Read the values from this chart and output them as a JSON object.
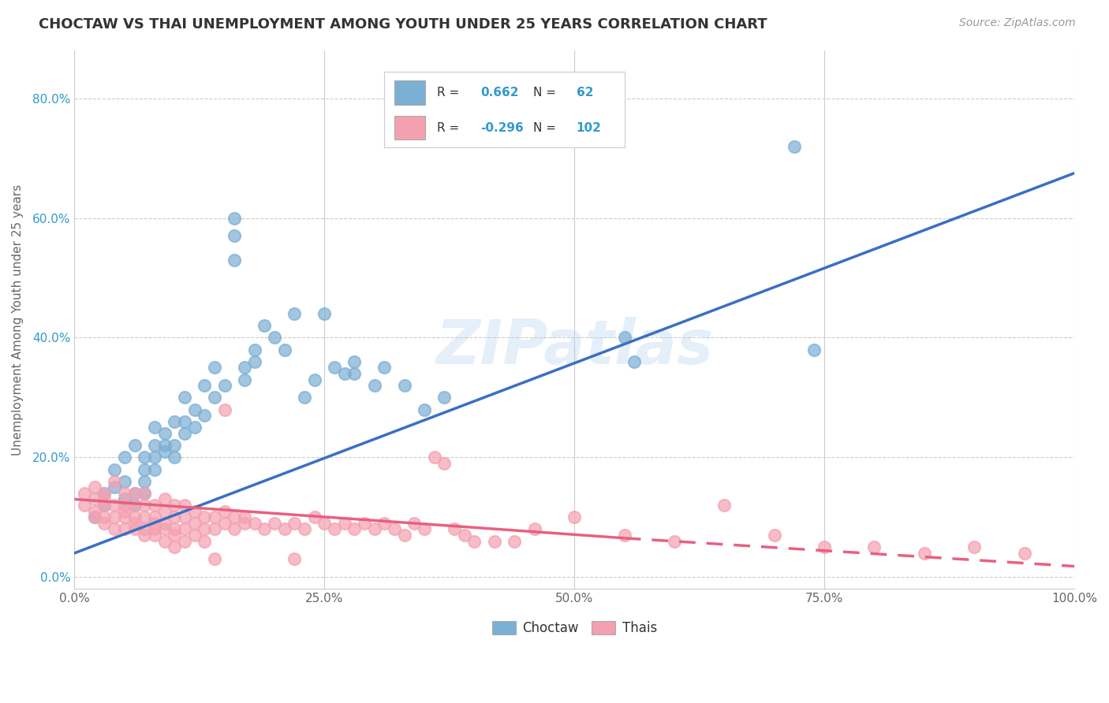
{
  "title": "CHOCTAW VS THAI UNEMPLOYMENT AMONG YOUTH UNDER 25 YEARS CORRELATION CHART",
  "source": "Source: ZipAtlas.com",
  "ylabel": "Unemployment Among Youth under 25 years",
  "xlim": [
    0.0,
    1.0
  ],
  "ylim": [
    -0.02,
    0.88
  ],
  "xticks": [
    0.0,
    0.25,
    0.5,
    0.75,
    1.0
  ],
  "xticklabels": [
    "0.0%",
    "25.0%",
    "50.0%",
    "75.0%",
    "100.0%"
  ],
  "ytick_positions": [
    0.0,
    0.2,
    0.4,
    0.6,
    0.8
  ],
  "yticklabels": [
    "0.0%",
    "20.0%",
    "40.0%",
    "60.0%",
    "80.0%"
  ],
  "choctaw_color": "#7BAFD4",
  "thai_color": "#F4A0B0",
  "choctaw_line_color": "#3A6FC4",
  "thai_line_color": "#E86080",
  "legend_R_choctaw": "0.662",
  "legend_N_choctaw": "62",
  "legend_R_thai": "-0.296",
  "legend_N_thai": "102",
  "watermark": "ZIPatlas",
  "background_color": "#FFFFFF",
  "grid_color": "#CCCCCC",
  "choctaw_scatter": [
    [
      0.02,
      0.1
    ],
    [
      0.03,
      0.14
    ],
    [
      0.03,
      0.12
    ],
    [
      0.04,
      0.15
    ],
    [
      0.04,
      0.18
    ],
    [
      0.05,
      0.13
    ],
    [
      0.05,
      0.2
    ],
    [
      0.05,
      0.16
    ],
    [
      0.06,
      0.12
    ],
    [
      0.06,
      0.22
    ],
    [
      0.06,
      0.14
    ],
    [
      0.07,
      0.18
    ],
    [
      0.07,
      0.2
    ],
    [
      0.07,
      0.16
    ],
    [
      0.07,
      0.14
    ],
    [
      0.08,
      0.2
    ],
    [
      0.08,
      0.22
    ],
    [
      0.08,
      0.25
    ],
    [
      0.08,
      0.18
    ],
    [
      0.09,
      0.22
    ],
    [
      0.09,
      0.24
    ],
    [
      0.09,
      0.21
    ],
    [
      0.1,
      0.26
    ],
    [
      0.1,
      0.22
    ],
    [
      0.1,
      0.2
    ],
    [
      0.11,
      0.3
    ],
    [
      0.11,
      0.26
    ],
    [
      0.11,
      0.24
    ],
    [
      0.12,
      0.28
    ],
    [
      0.12,
      0.25
    ],
    [
      0.13,
      0.32
    ],
    [
      0.13,
      0.27
    ],
    [
      0.14,
      0.35
    ],
    [
      0.14,
      0.3
    ],
    [
      0.15,
      0.32
    ],
    [
      0.16,
      0.6
    ],
    [
      0.16,
      0.57
    ],
    [
      0.16,
      0.53
    ],
    [
      0.17,
      0.35
    ],
    [
      0.17,
      0.33
    ],
    [
      0.18,
      0.38
    ],
    [
      0.18,
      0.36
    ],
    [
      0.19,
      0.42
    ],
    [
      0.2,
      0.4
    ],
    [
      0.21,
      0.38
    ],
    [
      0.22,
      0.44
    ],
    [
      0.23,
      0.3
    ],
    [
      0.24,
      0.33
    ],
    [
      0.25,
      0.44
    ],
    [
      0.26,
      0.35
    ],
    [
      0.27,
      0.34
    ],
    [
      0.28,
      0.34
    ],
    [
      0.28,
      0.36
    ],
    [
      0.3,
      0.32
    ],
    [
      0.31,
      0.35
    ],
    [
      0.33,
      0.32
    ],
    [
      0.55,
      0.4
    ],
    [
      0.56,
      0.36
    ],
    [
      0.72,
      0.72
    ],
    [
      0.74,
      0.38
    ],
    [
      0.37,
      0.3
    ],
    [
      0.35,
      0.28
    ]
  ],
  "thai_scatter": [
    [
      0.01,
      0.14
    ],
    [
      0.01,
      0.12
    ],
    [
      0.02,
      0.13
    ],
    [
      0.02,
      0.11
    ],
    [
      0.02,
      0.15
    ],
    [
      0.02,
      0.1
    ],
    [
      0.03,
      0.14
    ],
    [
      0.03,
      0.12
    ],
    [
      0.03,
      0.1
    ],
    [
      0.03,
      0.13
    ],
    [
      0.03,
      0.09
    ],
    [
      0.04,
      0.16
    ],
    [
      0.04,
      0.12
    ],
    [
      0.04,
      0.1
    ],
    [
      0.04,
      0.08
    ],
    [
      0.05,
      0.14
    ],
    [
      0.05,
      0.12
    ],
    [
      0.05,
      0.1
    ],
    [
      0.05,
      0.08
    ],
    [
      0.05,
      0.11
    ],
    [
      0.06,
      0.14
    ],
    [
      0.06,
      0.12
    ],
    [
      0.06,
      0.1
    ],
    [
      0.06,
      0.08
    ],
    [
      0.06,
      0.09
    ],
    [
      0.07,
      0.14
    ],
    [
      0.07,
      0.12
    ],
    [
      0.07,
      0.1
    ],
    [
      0.07,
      0.08
    ],
    [
      0.07,
      0.07
    ],
    [
      0.08,
      0.12
    ],
    [
      0.08,
      0.1
    ],
    [
      0.08,
      0.08
    ],
    [
      0.08,
      0.09
    ],
    [
      0.08,
      0.07
    ],
    [
      0.09,
      0.13
    ],
    [
      0.09,
      0.11
    ],
    [
      0.09,
      0.09
    ],
    [
      0.09,
      0.08
    ],
    [
      0.09,
      0.06
    ],
    [
      0.1,
      0.12
    ],
    [
      0.1,
      0.1
    ],
    [
      0.1,
      0.08
    ],
    [
      0.1,
      0.07
    ],
    [
      0.1,
      0.05
    ],
    [
      0.11,
      0.12
    ],
    [
      0.11,
      0.1
    ],
    [
      0.11,
      0.08
    ],
    [
      0.11,
      0.06
    ],
    [
      0.12,
      0.11
    ],
    [
      0.12,
      0.09
    ],
    [
      0.12,
      0.07
    ],
    [
      0.13,
      0.1
    ],
    [
      0.13,
      0.08
    ],
    [
      0.13,
      0.06
    ],
    [
      0.14,
      0.1
    ],
    [
      0.14,
      0.08
    ],
    [
      0.15,
      0.11
    ],
    [
      0.15,
      0.09
    ],
    [
      0.15,
      0.28
    ],
    [
      0.16,
      0.1
    ],
    [
      0.16,
      0.08
    ],
    [
      0.17,
      0.1
    ],
    [
      0.17,
      0.09
    ],
    [
      0.18,
      0.09
    ],
    [
      0.19,
      0.08
    ],
    [
      0.2,
      0.09
    ],
    [
      0.21,
      0.08
    ],
    [
      0.22,
      0.09
    ],
    [
      0.23,
      0.08
    ],
    [
      0.24,
      0.1
    ],
    [
      0.25,
      0.09
    ],
    [
      0.26,
      0.08
    ],
    [
      0.27,
      0.09
    ],
    [
      0.28,
      0.08
    ],
    [
      0.29,
      0.09
    ],
    [
      0.3,
      0.08
    ],
    [
      0.31,
      0.09
    ],
    [
      0.32,
      0.08
    ],
    [
      0.33,
      0.07
    ],
    [
      0.34,
      0.09
    ],
    [
      0.35,
      0.08
    ],
    [
      0.36,
      0.2
    ],
    [
      0.37,
      0.19
    ],
    [
      0.38,
      0.08
    ],
    [
      0.39,
      0.07
    ],
    [
      0.4,
      0.06
    ],
    [
      0.42,
      0.06
    ],
    [
      0.44,
      0.06
    ],
    [
      0.46,
      0.08
    ],
    [
      0.5,
      0.1
    ],
    [
      0.55,
      0.07
    ],
    [
      0.6,
      0.06
    ],
    [
      0.65,
      0.12
    ],
    [
      0.7,
      0.07
    ],
    [
      0.75,
      0.05
    ],
    [
      0.8,
      0.05
    ],
    [
      0.85,
      0.04
    ],
    [
      0.9,
      0.05
    ],
    [
      0.95,
      0.04
    ],
    [
      0.14,
      0.03
    ],
    [
      0.22,
      0.03
    ]
  ],
  "choctaw_line": [
    [
      0.0,
      0.04
    ],
    [
      1.0,
      0.675
    ]
  ],
  "thai_line_solid": [
    [
      0.0,
      0.13
    ],
    [
      0.55,
      0.065
    ]
  ],
  "thai_line_dashed": [
    [
      0.55,
      0.065
    ],
    [
      1.0,
      0.018
    ]
  ]
}
